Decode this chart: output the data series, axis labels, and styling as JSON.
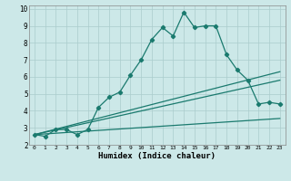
{
  "title": "",
  "xlabel": "Humidex (Indice chaleur)",
  "bg_color": "#cce8e8",
  "line_color": "#1a7a6e",
  "xlim": [
    -0.5,
    23.5
  ],
  "ylim": [
    2,
    10.2
  ],
  "xticks": [
    0,
    1,
    2,
    3,
    4,
    5,
    6,
    7,
    8,
    9,
    10,
    11,
    12,
    13,
    14,
    15,
    16,
    17,
    18,
    19,
    20,
    21,
    22,
    23
  ],
  "yticks": [
    2,
    3,
    4,
    5,
    6,
    7,
    8,
    9,
    10
  ],
  "line1_x": [
    0,
    1,
    2,
    3,
    4,
    5,
    6,
    7,
    8,
    9,
    10,
    11,
    12,
    13,
    14,
    15,
    16,
    17,
    18,
    19,
    20,
    21,
    22,
    23
  ],
  "line1_y": [
    2.6,
    2.5,
    2.9,
    2.9,
    2.6,
    2.9,
    4.2,
    4.8,
    5.1,
    6.1,
    7.0,
    8.2,
    8.9,
    8.4,
    9.8,
    8.9,
    9.0,
    9.0,
    7.3,
    6.4,
    5.8,
    4.4,
    4.5,
    4.4
  ],
  "line2_x": [
    0,
    23
  ],
  "line2_y": [
    2.6,
    6.3
  ],
  "line3_x": [
    0,
    23
  ],
  "line3_y": [
    2.6,
    5.8
  ],
  "line4_x": [
    0,
    23
  ],
  "line4_y": [
    2.6,
    3.55
  ],
  "grid_color": "#aacccc",
  "marker": "D",
  "markersize": 2.2,
  "linewidth": 0.9
}
